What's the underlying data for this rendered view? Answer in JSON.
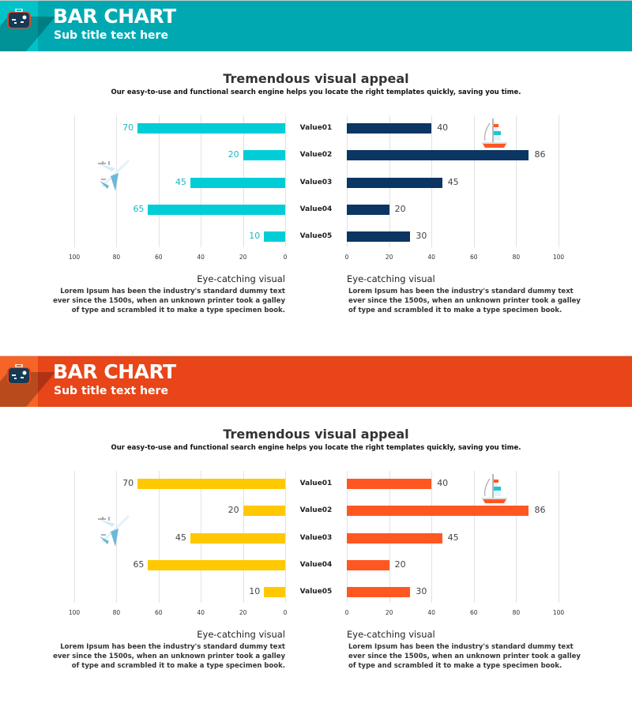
{
  "panels": [
    {
      "header": {
        "title": "BAR CHART",
        "subtitle": "Sub title text here",
        "color": "#00a9b1",
        "light_color": "#00c3ca",
        "icon": "suitcase-icon"
      },
      "heading": "Tremendous visual appeal",
      "subheading": "Our easy-to-use and functional search engine helps you locate the right templates quickly, saving you time.",
      "left_caption": {
        "title": "Eye-catching visual",
        "lines": [
          "Lorem Ipsum has been the industry's standard dummy text",
          "ever since the 1500s, when an unknown printer took a galley",
          "of type and scrambled it to make a type specimen book."
        ]
      },
      "right_caption": {
        "title": "Eye-catching visual",
        "lines": [
          "Lorem Ipsum has been the industry's standard dummy text",
          "ever since the 1500s, when an unknown printer took a galley",
          "of type and scrambled it to make a type specimen book."
        ]
      },
      "left_icon": "airplane-icon",
      "right_icon": "sailboat-icon"
    },
    {
      "header": {
        "title": "BAR CHART",
        "subtitle": "Sub title text here",
        "color": "#e84518",
        "light_color": "#f66427",
        "icon": "suitcase-icon"
      },
      "heading": "Tremendous visual appeal",
      "subheading": "Our easy-to-use and functional search engine helps you locate the right templates quickly, saving you time.",
      "left_caption": {
        "title": "Eye-catching visual",
        "lines": [
          "Lorem Ipsum has been the industry's standard dummy text",
          "ever since the 1500s, when an unknown printer took a galley",
          "of type and scrambled it to make a type specimen book."
        ]
      },
      "right_caption": {
        "title": "Eye-catching visual",
        "lines": [
          "Lorem Ipsum has been the industry's standard dummy text",
          "ever since the 1500s, when an unknown printer took a galley",
          "of type and scrambled it to make a type specimen book."
        ]
      },
      "left_icon": "airplane-icon",
      "right_icon": "sailboat-icon"
    }
  ],
  "chart_data": [
    {
      "type": "bar",
      "orientation": "horizontal",
      "x_reversed": true,
      "categories": [
        "Value01",
        "Value02",
        "Value03",
        "Value04",
        "Value05"
      ],
      "values": [
        70,
        20,
        45,
        65,
        10
      ],
      "xlim": [
        0,
        100
      ],
      "xticks": [
        100,
        80,
        60,
        40,
        20,
        0
      ],
      "grid": true,
      "bar_color": "#00cdd6",
      "label_color": "#1ab8c2"
    },
    {
      "type": "bar",
      "orientation": "horizontal",
      "x_reversed": false,
      "categories": [
        "Value01",
        "Value02",
        "Value03",
        "Value04",
        "Value05"
      ],
      "values": [
        40,
        86,
        45,
        20,
        30
      ],
      "xlim": [
        0,
        100
      ],
      "xticks": [
        0,
        20,
        40,
        60,
        80,
        100
      ],
      "grid": true,
      "bar_color": "#0b3563",
      "label_color": "#444444"
    },
    {
      "type": "bar",
      "orientation": "horizontal",
      "x_reversed": true,
      "categories": [
        "Value01",
        "Value02",
        "Value03",
        "Value04",
        "Value05"
      ],
      "values": [
        70,
        20,
        45,
        65,
        10
      ],
      "xlim": [
        0,
        100
      ],
      "xticks": [
        100,
        80,
        60,
        40,
        20,
        0
      ],
      "grid": true,
      "bar_color": "#ffc800",
      "label_color": "#444444"
    },
    {
      "type": "bar",
      "orientation": "horizontal",
      "x_reversed": false,
      "categories": [
        "Value01",
        "Value02",
        "Value03",
        "Value04",
        "Value05"
      ],
      "values": [
        40,
        86,
        45,
        20,
        30
      ],
      "xlim": [
        0,
        100
      ],
      "xticks": [
        0,
        20,
        40,
        60,
        80,
        100
      ],
      "grid": true,
      "bar_color": "#ff5722",
      "label_color": "#444444"
    }
  ]
}
